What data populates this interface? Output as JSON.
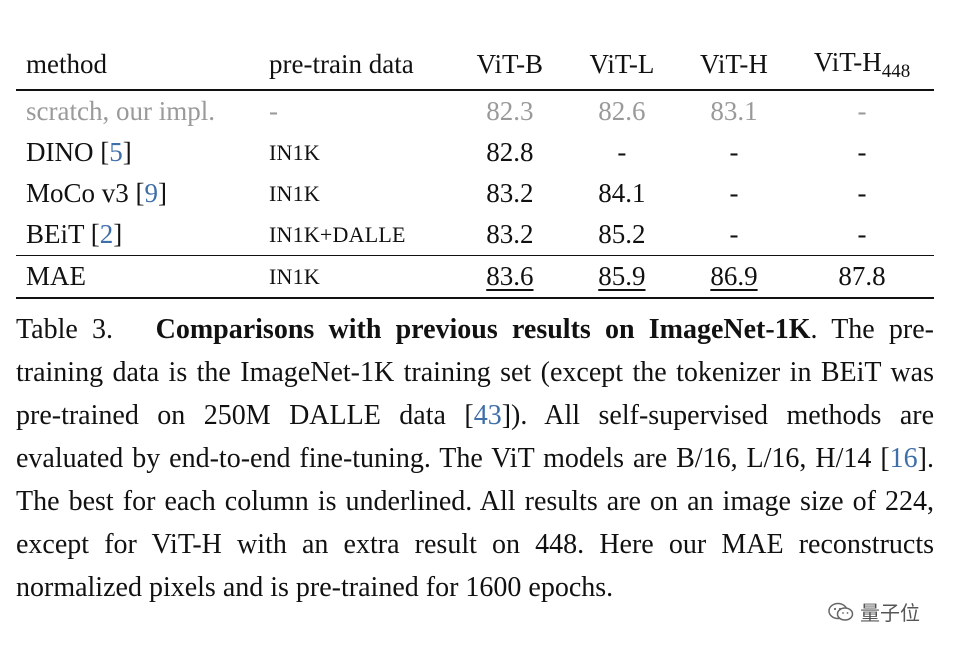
{
  "table": {
    "headers": [
      "method",
      "pre-train data",
      "ViT-B",
      "ViT-L",
      "ViT-H",
      "ViT-H",
      "448"
    ],
    "rows": [
      {
        "method": "scratch, our impl.",
        "ref": "",
        "data": "-",
        "b": "82.3",
        "l": "82.6",
        "h": "83.1",
        "h448": "-"
      },
      {
        "method": "DINO [",
        "ref": "5",
        "data": "IN1K",
        "b": "82.8",
        "l": "-",
        "h": "-",
        "h448": "-"
      },
      {
        "method": "MoCo v3 [",
        "ref": "9",
        "data": "IN1K",
        "b": "83.2",
        "l": "84.1",
        "h": "-",
        "h448": "-"
      },
      {
        "method": "BEiT [",
        "ref": "2",
        "data": "IN1K+DALLE",
        "b": "83.2",
        "l": "85.2",
        "h": "-",
        "h448": "-"
      },
      {
        "method": "MAE",
        "ref": "",
        "data": "IN1K",
        "b": "83.6",
        "l": "85.9",
        "h": "86.9",
        "h448": "87.8"
      }
    ],
    "bracket_close": "]"
  },
  "caption": {
    "label": "Table 3.",
    "bold": "Comparisons with previous results on ImageNet-1K",
    "t1": ". The pre-training data is the ImageNet-1K training set (except the tokenizer in BEiT was pre-trained on 250M DALLE data [",
    "ref1": "43",
    "t2": "]). All self-supervised methods are evaluated by end-to-end fine-tuning. The ViT models are B/16, L/16, H/14 [",
    "ref2": "16",
    "t3": "]. The best for each column is underlined. All results are on an image size of 224, except for ViT-H with an extra result on 448. Here our MAE reconstructs normalized pixels and is pre-trained for 1600 epochs."
  },
  "watermark": {
    "text": "量子位",
    "icon": "wechat-icon"
  },
  "colors": {
    "text": "#111111",
    "gray_row": "#9a9a9a",
    "ref_link": "#3f6fa9"
  }
}
